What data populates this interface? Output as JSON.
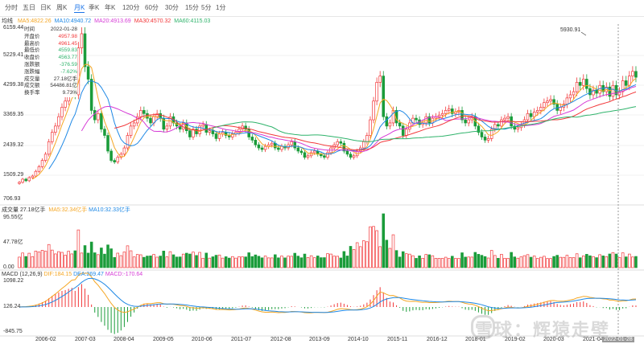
{
  "tabs": [
    "分时",
    "五日",
    "日K",
    "周K",
    "月K",
    "季K",
    "年K",
    "120分",
    "60分",
    "30分",
    "15分",
    "5分",
    "1分"
  ],
  "active_tab": "月K",
  "ma_label": "均线",
  "ma": [
    {
      "text": "MA5:4822.26",
      "color": "#f5a623"
    },
    {
      "text": "MA10:4940.72",
      "color": "#1e88e5"
    },
    {
      "text": "MA20:4913.69",
      "color": "#d63bd6"
    },
    {
      "text": "MA30:4570.32",
      "color": "#f2383a"
    },
    {
      "text": "MA60:4115.03",
      "color": "#2fb36b"
    }
  ],
  "price_axis": [
    "6159.44",
    "5229.41",
    "4299.38",
    "3369.35",
    "2439.32",
    "1509.29",
    "706.93"
  ],
  "peak_label": "5930.91",
  "tooltip": [
    {
      "k": "时间",
      "v": "2022-01-28",
      "c": "#333"
    },
    {
      "k": "开盘价",
      "v": "4957.98",
      "c": "#f2383a"
    },
    {
      "k": "最高价",
      "v": "4961.45",
      "c": "#f2383a"
    },
    {
      "k": "最低价",
      "v": "4559.83",
      "c": "#2fb36b"
    },
    {
      "k": "收盘价",
      "v": "4563.77",
      "c": "#2fb36b"
    },
    {
      "k": "涨跌额",
      "v": "-376.59",
      "c": "#2fb36b"
    },
    {
      "k": "涨跌幅",
      "v": "-7.62%",
      "c": "#2fb36b"
    },
    {
      "k": "成交量",
      "v": "27.18亿手",
      "c": "#333"
    },
    {
      "k": "成交额",
      "v": "54486.81亿",
      "c": "#333"
    },
    {
      "k": "换手率",
      "v": "9.73%",
      "c": "#333"
    }
  ],
  "volume": {
    "legend": "成交量 27.18亿手",
    "ma5": "MA5:32.34亿手",
    "ma10": "MA10:32.33亿手",
    "axis": [
      "95.55亿",
      "47.78亿",
      "0.00"
    ]
  },
  "macd": {
    "legend": "MACD (12,26,9)",
    "dif": "DIF:184.15",
    "dea": "DEA:269.47",
    "macd": "MACD:-170.64",
    "axis": [
      "1098.22",
      "126.24",
      "-845.75"
    ]
  },
  "x_axis": [
    "2006-02",
    "2007-03",
    "2008-04",
    "2009-05",
    "2010-06",
    "2011-07",
    "2012-08",
    "2013-09",
    "2014-10",
    "2015-11",
    "2016-12",
    "2018-01",
    "2019-02",
    "2020-03",
    "2021-04"
  ],
  "crosshair_date": "2022-01-28",
  "watermark": "雪球：辉猿走壁",
  "colors": {
    "up": "#f2383a",
    "down": "#1a9c3a",
    "accent": "#1a73e8"
  },
  "chart_data": {
    "type": "candlestick",
    "monthly_close": [
      1200,
      1300,
      1250,
      1350,
      1400,
      1550,
      1700,
      1900,
      2100,
      2500,
      2800,
      3000,
      3300,
      3600,
      3800,
      4200,
      4500,
      4000,
      5500,
      5954,
      4900,
      4500,
      3500,
      3200,
      3400,
      2900,
      2700,
      2200,
      1900,
      1850,
      2000,
      2100,
      2300,
      2700,
      3000,
      3100,
      3300,
      3500,
      3400,
      3250,
      3100,
      3300,
      3400,
      3250,
      2900,
      3000,
      3300,
      3100,
      3000,
      2900,
      3100,
      2850,
      2650,
      2900,
      2750,
      3000,
      3050,
      2800,
      2850,
      2750,
      2600,
      2750,
      2800,
      2700,
      2650,
      2750,
      2800,
      2900,
      3000,
      2900,
      2650,
      2550,
      2400,
      2300,
      2250,
      2350,
      2400,
      2450,
      2300,
      2250,
      2350,
      2300,
      2400,
      2500,
      2300,
      2200,
      2150,
      2000,
      2050,
      2150,
      2200,
      2100,
      2050,
      2000,
      2150,
      2300,
      2400,
      2500,
      2450,
      2200,
      2100,
      2000,
      2050,
      2200,
      2300,
      2500,
      2700,
      3200,
      3800,
      4400,
      4600,
      3300,
      3000,
      3100,
      3500,
      3100,
      3000,
      2700,
      2900,
      3100,
      3250,
      3200,
      3050,
      3100,
      3300,
      3100,
      3250,
      3300,
      3350,
      3400,
      3500,
      3550,
      3400,
      3450,
      3500,
      3200,
      3100,
      3200,
      3300,
      3000,
      2800,
      2650,
      2550,
      2600,
      2900,
      3050,
      3000,
      3200,
      3250,
      3300,
      3000,
      2900,
      2950,
      3050,
      3200,
      3400,
      3300,
      3450,
      3500,
      3600,
      3750,
      3800,
      3850,
      3700,
      3500,
      3600,
      3700,
      3900,
      4000,
      4100,
      4400,
      4300,
      4500,
      4200,
      4000,
      4150,
      4050,
      4300,
      4100,
      4250,
      3950,
      4300,
      4000,
      4100,
      4450,
      4300,
      4600,
      4750,
      4563
    ]
  }
}
